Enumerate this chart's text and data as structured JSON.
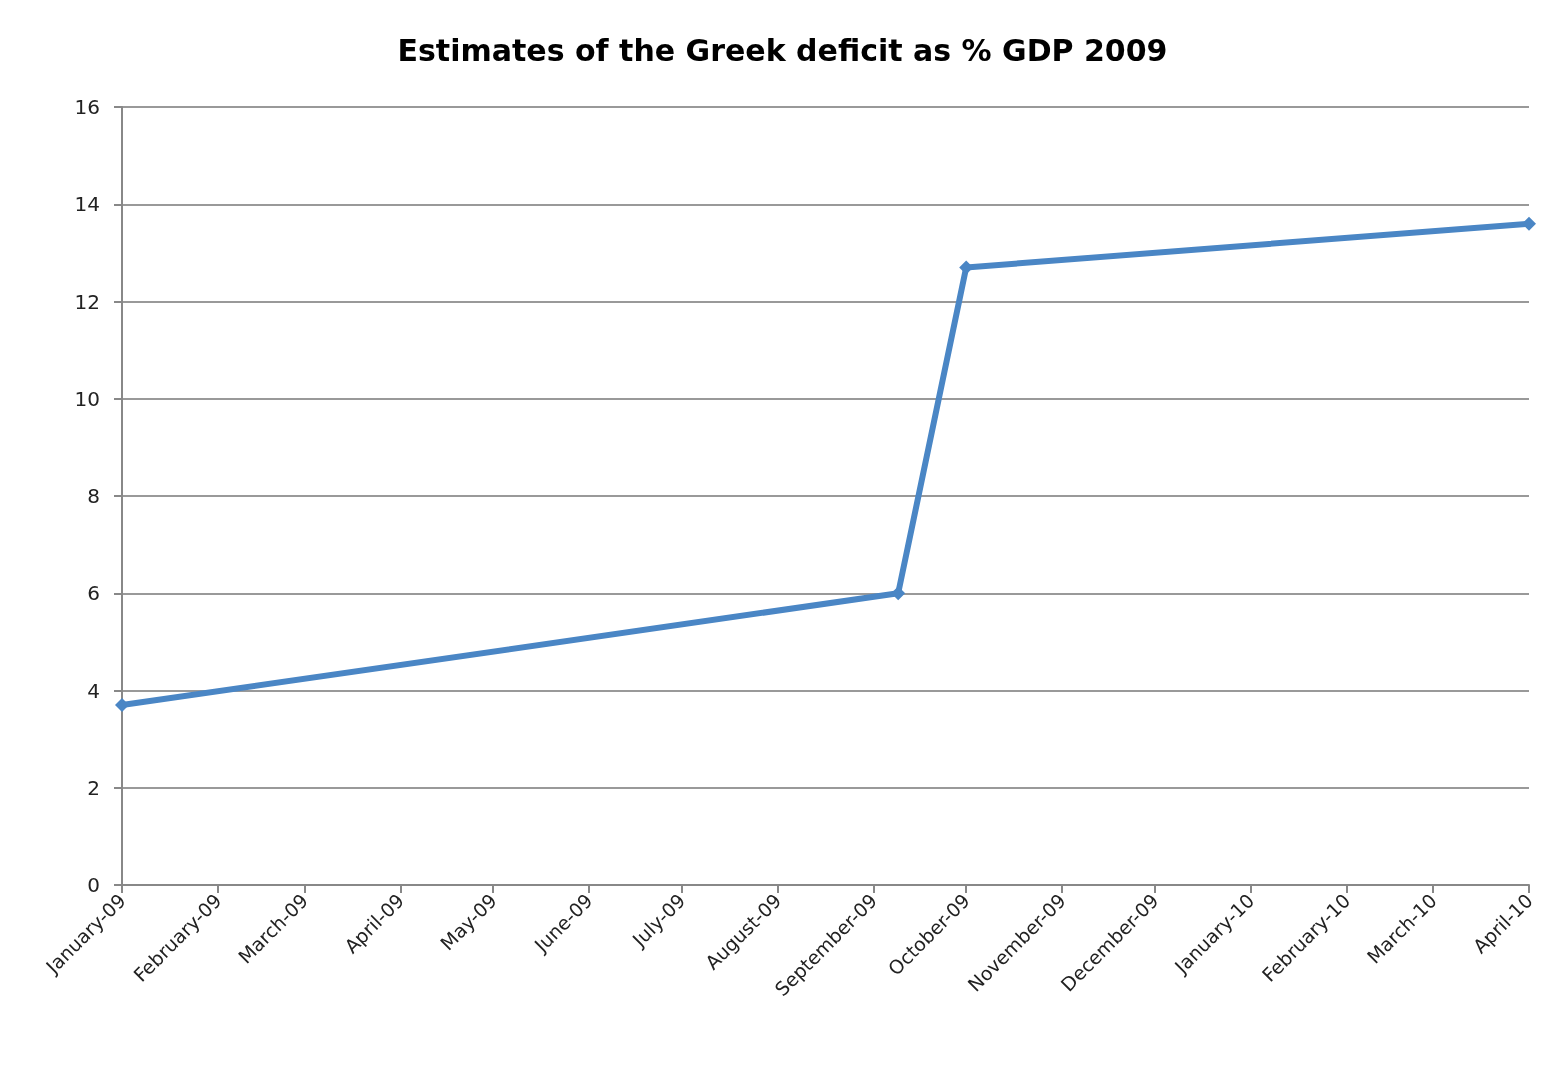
{
  "chart_data": {
    "type": "line",
    "title": "Estimates of the Greek deficit as % GDP 2009",
    "x": [
      "2009-01-01",
      "2009-09-09",
      "2009-10-01",
      "2010-04-01"
    ],
    "series": [
      {
        "color": "#4a86c5",
        "values": [
          3.7,
          6.0,
          12.7,
          13.6
        ]
      }
    ],
    "xlim": [
      "2009-01-01",
      "2010-04-01"
    ],
    "xticks": [
      {
        "value": "2009-01-01",
        "label": "January-09"
      },
      {
        "value": "2009-02-01",
        "label": "February-09"
      },
      {
        "value": "2009-03-01",
        "label": "March-09"
      },
      {
        "value": "2009-04-01",
        "label": "April-09"
      },
      {
        "value": "2009-05-01",
        "label": "May-09"
      },
      {
        "value": "2009-06-01",
        "label": "June-09"
      },
      {
        "value": "2009-07-01",
        "label": "July-09"
      },
      {
        "value": "2009-08-01",
        "label": "August-09"
      },
      {
        "value": "2009-09-01",
        "label": "September-09"
      },
      {
        "value": "2009-10-01",
        "label": "October-09"
      },
      {
        "value": "2009-11-01",
        "label": "November-09"
      },
      {
        "value": "2009-12-01",
        "label": "December-09"
      },
      {
        "value": "2010-01-01",
        "label": "January-10"
      },
      {
        "value": "2010-02-01",
        "label": "February-10"
      },
      {
        "value": "2010-03-01",
        "label": "March-10"
      },
      {
        "value": "2010-04-01",
        "label": "April-10"
      }
    ],
    "ylim": [
      0,
      16
    ],
    "yticks": [
      0,
      2,
      4,
      6,
      8,
      10,
      12,
      14,
      16
    ],
    "grid": "y",
    "marker": "diamond",
    "line_style": "solid"
  }
}
